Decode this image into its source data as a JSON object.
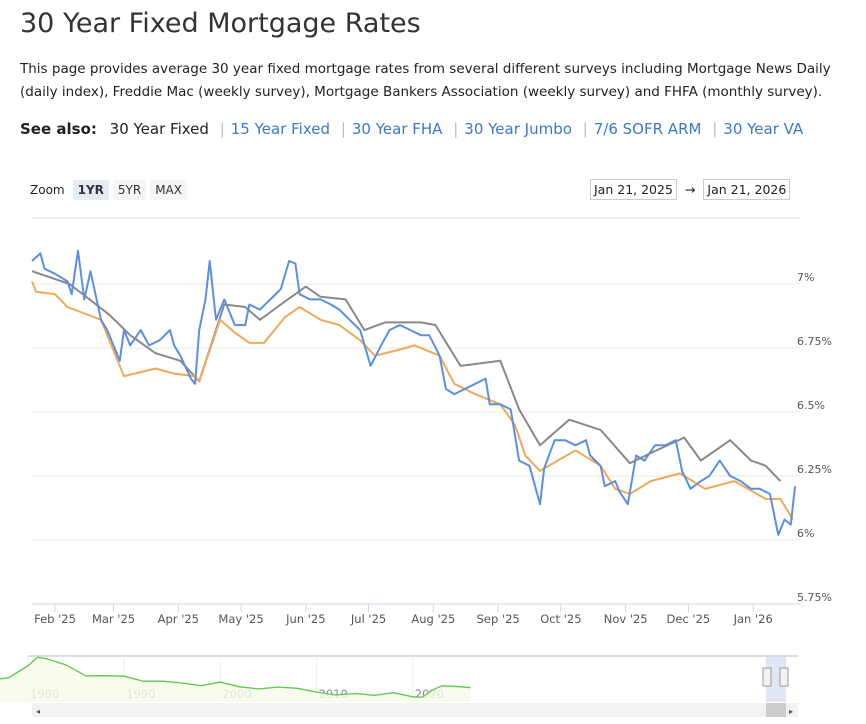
{
  "page": {
    "title": "30 Year Fixed Mortgage Rates",
    "description": "This page provides average 30 year fixed mortgage rates from several different surveys including Mortgage News Daily (daily index), Freddie Mac (weekly survey), Mortgage Bankers Association (weekly survey) and FHFA (monthly survey)."
  },
  "see_also": {
    "label": "See also:",
    "current": "30 Year Fixed",
    "links": [
      "15 Year Fixed",
      "30 Year FHA",
      "30 Year Jumbo",
      "7/6 SOFR ARM",
      "30 Year VA"
    ]
  },
  "zoom": {
    "label": "Zoom",
    "options": [
      "1YR",
      "5YR",
      "MAX"
    ],
    "selected": "1YR"
  },
  "range": {
    "from": "Jan 21, 2025",
    "to": "Jan 21, 2026",
    "arrow": "→"
  },
  "colors": {
    "blue": "#5b8fe0",
    "orange": "#f0a85a",
    "gray": "#888888",
    "navigator": "#5cc84a"
  },
  "chart_data": {
    "type": "line",
    "x_range": [
      "2025-01-21",
      "2026-01-21"
    ],
    "ylim": [
      5.75,
      7.15
    ],
    "y_ticks": [
      {
        "v": 7,
        "label": "7%"
      },
      {
        "v": 6.75,
        "label": "6.75%"
      },
      {
        "v": 6.5,
        "label": "6.5%"
      },
      {
        "v": 6.25,
        "label": "6.25%"
      },
      {
        "v": 6,
        "label": "6%"
      },
      {
        "v": 5.75,
        "label": "5.75%"
      }
    ],
    "x_ticks": [
      {
        "d": "2025-02-01",
        "label": "Feb '25"
      },
      {
        "d": "2025-03-01",
        "label": "Mar '25"
      },
      {
        "d": "2025-04-01",
        "label": "Apr '25"
      },
      {
        "d": "2025-05-01",
        "label": "May '25"
      },
      {
        "d": "2025-06-01",
        "label": "Jun '25"
      },
      {
        "d": "2025-07-01",
        "label": "Jul '25"
      },
      {
        "d": "2025-08-01",
        "label": "Aug '25"
      },
      {
        "d": "2025-09-01",
        "label": "Sep '25"
      },
      {
        "d": "2025-10-01",
        "label": "Oct '25"
      },
      {
        "d": "2025-11-01",
        "label": "Nov '25"
      },
      {
        "d": "2025-12-01",
        "label": "Dec '25"
      },
      {
        "d": "2026-01-01",
        "label": "Jan '26"
      }
    ],
    "grid": true,
    "series": [
      {
        "color": "#5b8fe0",
        "points": [
          [
            "2025-01-21",
            7.09
          ],
          [
            "2025-01-25",
            7.12
          ],
          [
            "2025-01-27",
            7.06
          ],
          [
            "2025-02-01",
            7.04
          ],
          [
            "2025-02-07",
            7.01
          ],
          [
            "2025-02-09",
            6.96
          ],
          [
            "2025-02-12",
            7.13
          ],
          [
            "2025-02-15",
            6.94
          ],
          [
            "2025-02-18",
            7.05
          ],
          [
            "2025-02-23",
            6.86
          ],
          [
            "2025-02-26",
            6.82
          ],
          [
            "2025-03-02",
            6.74
          ],
          [
            "2025-03-04",
            6.7
          ],
          [
            "2025-03-06",
            6.82
          ],
          [
            "2025-03-09",
            6.76
          ],
          [
            "2025-03-14",
            6.82
          ],
          [
            "2025-03-18",
            6.76
          ],
          [
            "2025-03-23",
            6.78
          ],
          [
            "2025-03-28",
            6.82
          ],
          [
            "2025-03-30",
            6.76
          ],
          [
            "2025-04-02",
            6.72
          ],
          [
            "2025-04-07",
            6.63
          ],
          [
            "2025-04-09",
            6.61
          ],
          [
            "2025-04-11",
            6.82
          ],
          [
            "2025-04-14",
            6.94
          ],
          [
            "2025-04-16",
            7.09
          ],
          [
            "2025-04-19",
            6.86
          ],
          [
            "2025-04-23",
            6.94
          ],
          [
            "2025-04-28",
            6.84
          ],
          [
            "2025-05-03",
            6.84
          ],
          [
            "2025-05-05",
            6.92
          ],
          [
            "2025-05-10",
            6.9
          ],
          [
            "2025-05-15",
            6.94
          ],
          [
            "2025-05-20",
            6.98
          ],
          [
            "2025-05-24",
            7.09
          ],
          [
            "2025-05-27",
            7.08
          ],
          [
            "2025-05-29",
            6.96
          ],
          [
            "2025-06-03",
            6.94
          ],
          [
            "2025-06-08",
            6.94
          ],
          [
            "2025-06-13",
            6.92
          ],
          [
            "2025-06-17",
            6.9
          ],
          [
            "2025-06-22",
            6.86
          ],
          [
            "2025-06-27",
            6.82
          ],
          [
            "2025-07-02",
            6.68
          ],
          [
            "2025-07-07",
            6.76
          ],
          [
            "2025-07-11",
            6.82
          ],
          [
            "2025-07-16",
            6.84
          ],
          [
            "2025-07-21",
            6.82
          ],
          [
            "2025-07-26",
            6.8
          ],
          [
            "2025-07-30",
            6.8
          ],
          [
            "2025-08-04",
            6.72
          ],
          [
            "2025-08-07",
            6.59
          ],
          [
            "2025-08-11",
            6.57
          ],
          [
            "2025-08-16",
            6.59
          ],
          [
            "2025-08-21",
            6.61
          ],
          [
            "2025-08-26",
            6.63
          ],
          [
            "2025-08-28",
            6.53
          ],
          [
            "2025-09-02",
            6.53
          ],
          [
            "2025-09-07",
            6.51
          ],
          [
            "2025-09-11",
            6.31
          ],
          [
            "2025-09-16",
            6.29
          ],
          [
            "2025-09-21",
            6.14
          ],
          [
            "2025-09-23",
            6.28
          ],
          [
            "2025-09-28",
            6.39
          ],
          [
            "2025-10-03",
            6.39
          ],
          [
            "2025-10-08",
            6.37
          ],
          [
            "2025-10-13",
            6.39
          ],
          [
            "2025-10-15",
            6.33
          ],
          [
            "2025-10-20",
            6.29
          ],
          [
            "2025-10-22",
            6.21
          ],
          [
            "2025-10-27",
            6.23
          ],
          [
            "2025-10-29",
            6.19
          ],
          [
            "2025-11-02",
            6.14
          ],
          [
            "2025-11-06",
            6.33
          ],
          [
            "2025-11-10",
            6.31
          ],
          [
            "2025-11-15",
            6.37
          ],
          [
            "2025-11-20",
            6.37
          ],
          [
            "2025-11-25",
            6.39
          ],
          [
            "2025-11-28",
            6.27
          ],
          [
            "2025-12-02",
            6.2
          ],
          [
            "2025-12-07",
            6.23
          ],
          [
            "2025-12-11",
            6.25
          ],
          [
            "2025-12-16",
            6.31
          ],
          [
            "2025-12-21",
            6.25
          ],
          [
            "2025-12-26",
            6.23
          ],
          [
            "2025-12-31",
            6.2
          ],
          [
            "2026-01-04",
            6.2
          ],
          [
            "2026-01-09",
            6.18
          ],
          [
            "2026-01-13",
            6.02
          ],
          [
            "2026-01-16",
            6.08
          ],
          [
            "2026-01-19",
            6.06
          ],
          [
            "2026-01-21",
            6.21
          ]
        ]
      },
      {
        "color": "#f0a85a",
        "points": [
          [
            "2025-01-21",
            7.01
          ],
          [
            "2025-01-23",
            6.97
          ],
          [
            "2025-02-01",
            6.96
          ],
          [
            "2025-02-07",
            6.91
          ],
          [
            "2025-02-23",
            6.86
          ],
          [
            "2025-02-27",
            6.78
          ],
          [
            "2025-03-06",
            6.64
          ],
          [
            "2025-03-21",
            6.67
          ],
          [
            "2025-03-30",
            6.65
          ],
          [
            "2025-04-09",
            6.64
          ],
          [
            "2025-04-11",
            6.62
          ],
          [
            "2025-04-21",
            6.86
          ],
          [
            "2025-04-28",
            6.81
          ],
          [
            "2025-05-05",
            6.77
          ],
          [
            "2025-05-12",
            6.77
          ],
          [
            "2025-05-22",
            6.87
          ],
          [
            "2025-05-29",
            6.91
          ],
          [
            "2025-06-08",
            6.86
          ],
          [
            "2025-06-17",
            6.84
          ],
          [
            "2025-06-27",
            6.78
          ],
          [
            "2025-07-04",
            6.72
          ],
          [
            "2025-07-14",
            6.74
          ],
          [
            "2025-07-23",
            6.76
          ],
          [
            "2025-08-04",
            6.72
          ],
          [
            "2025-08-11",
            6.61
          ],
          [
            "2025-08-21",
            6.57
          ],
          [
            "2025-09-02",
            6.53
          ],
          [
            "2025-09-09",
            6.45
          ],
          [
            "2025-09-14",
            6.33
          ],
          [
            "2025-09-21",
            6.27
          ],
          [
            "2025-10-08",
            6.35
          ],
          [
            "2025-10-20",
            6.29
          ],
          [
            "2025-10-27",
            6.2
          ],
          [
            "2025-11-03",
            6.18
          ],
          [
            "2025-11-13",
            6.23
          ],
          [
            "2025-11-27",
            6.26
          ],
          [
            "2025-12-09",
            6.2
          ],
          [
            "2025-12-23",
            6.23
          ],
          [
            "2026-01-07",
            6.16
          ],
          [
            "2026-01-14",
            6.16
          ],
          [
            "2026-01-20",
            6.08
          ]
        ]
      },
      {
        "color": "#888888",
        "points": [
          [
            "2025-01-21",
            7.05
          ],
          [
            "2025-02-08",
            7.0
          ],
          [
            "2025-02-27",
            6.88
          ],
          [
            "2025-03-09",
            6.8
          ],
          [
            "2025-03-21",
            6.73
          ],
          [
            "2025-04-02",
            6.7
          ],
          [
            "2025-04-11",
            6.62
          ],
          [
            "2025-04-23",
            6.92
          ],
          [
            "2025-05-03",
            6.91
          ],
          [
            "2025-05-10",
            6.86
          ],
          [
            "2025-05-20",
            6.92
          ],
          [
            "2025-06-01",
            6.99
          ],
          [
            "2025-06-08",
            6.95
          ],
          [
            "2025-06-20",
            6.94
          ],
          [
            "2025-06-29",
            6.82
          ],
          [
            "2025-07-09",
            6.85
          ],
          [
            "2025-07-26",
            6.85
          ],
          [
            "2025-08-02",
            6.84
          ],
          [
            "2025-08-14",
            6.68
          ],
          [
            "2025-09-02",
            6.7
          ],
          [
            "2025-09-11",
            6.51
          ],
          [
            "2025-09-21",
            6.37
          ],
          [
            "2025-10-05",
            6.47
          ],
          [
            "2025-10-20",
            6.43
          ],
          [
            "2025-11-03",
            6.3
          ],
          [
            "2025-11-13",
            6.34
          ],
          [
            "2025-11-29",
            6.4
          ],
          [
            "2025-12-07",
            6.31
          ],
          [
            "2025-12-21",
            6.39
          ],
          [
            "2025-12-31",
            6.31
          ],
          [
            "2026-01-07",
            6.29
          ],
          [
            "2026-01-14",
            6.23
          ]
        ]
      }
    ],
    "navigator": {
      "x_labels": [
        "1980",
        "1990",
        "2000",
        "2010",
        "2020"
      ],
      "points": [
        [
          1972,
          7.4
        ],
        [
          1974,
          9.0
        ],
        [
          1976,
          8.8
        ],
        [
          1978,
          9.6
        ],
        [
          1980,
          13.7
        ],
        [
          1981,
          16.6
        ],
        [
          1982,
          16.0
        ],
        [
          1984,
          13.9
        ],
        [
          1986,
          10.2
        ],
        [
          1988,
          10.3
        ],
        [
          1990,
          10.1
        ],
        [
          1992,
          8.4
        ],
        [
          1994,
          8.4
        ],
        [
          1996,
          7.8
        ],
        [
          1998,
          6.9
        ],
        [
          2000,
          8.1
        ],
        [
          2002,
          6.5
        ],
        [
          2004,
          5.8
        ],
        [
          2006,
          6.4
        ],
        [
          2008,
          6.0
        ],
        [
          2010,
          4.7
        ],
        [
          2012,
          3.7
        ],
        [
          2014,
          4.2
        ],
        [
          2016,
          3.6
        ],
        [
          2018,
          4.5
        ],
        [
          2020,
          3.1
        ],
        [
          2021,
          3.0
        ],
        [
          2022,
          5.3
        ],
        [
          2023,
          6.8
        ],
        [
          2024,
          6.7
        ],
        [
          2025,
          6.5
        ],
        [
          2026,
          6.2
        ]
      ]
    }
  }
}
